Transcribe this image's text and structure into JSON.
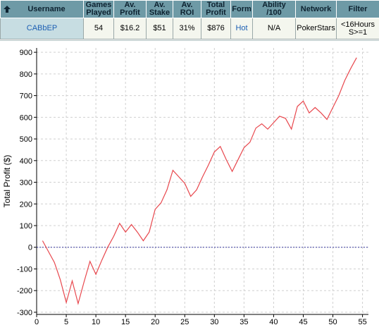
{
  "table": {
    "headers": {
      "username": "Username",
      "games_played": [
        "Games",
        "Played"
      ],
      "av_profit": [
        "Av.",
        "Profit"
      ],
      "av_stake": [
        "Av.",
        "Stake"
      ],
      "av_roi": "Av. ROI",
      "total_profit": [
        "Total",
        "Profit"
      ],
      "form": "Form",
      "ability": "Ability /100",
      "network": "Network",
      "filter": "Filter"
    },
    "row": {
      "username": "CABbEP",
      "games_played": "54",
      "av_profit": "$16.2",
      "av_stake": "$51",
      "av_roi": "31%",
      "total_profit": "$876",
      "form": "Hot",
      "ability": "N/A",
      "network": "PokerStars",
      "filter_line1": "<16Hours",
      "filter_line2": "S>=1"
    },
    "sort_icon": "arrow-up-icon"
  },
  "chart_data": {
    "type": "line",
    "ylabel": "Total Profit ($)",
    "xlabel": "",
    "xlim": [
      0,
      56
    ],
    "ylim": [
      -310,
      920
    ],
    "xticks": [
      0,
      5,
      10,
      15,
      20,
      25,
      30,
      35,
      40,
      45,
      50,
      55
    ],
    "yticks": [
      -300,
      -200,
      -100,
      0,
      100,
      200,
      300,
      400,
      500,
      600,
      700,
      800,
      900
    ],
    "grid": true,
    "zero_line": true,
    "colors": {
      "series": "#e8474d",
      "zero_line": "#3a3aa0",
      "grid": "#d0d0d0"
    },
    "series": [
      {
        "x": [
          1,
          2,
          3,
          4,
          5,
          6,
          7,
          8,
          9,
          10,
          11,
          12,
          13,
          14,
          15,
          16,
          17,
          18,
          19,
          20,
          21,
          22,
          23,
          24,
          25,
          26,
          27,
          28,
          29,
          30,
          31,
          32,
          33,
          34,
          35,
          36,
          37,
          38,
          39,
          40,
          41,
          42,
          43,
          44,
          45,
          46,
          47,
          48,
          49,
          50,
          51,
          52,
          53,
          54
        ],
        "values": [
          30,
          -20,
          -70,
          -150,
          -255,
          -155,
          -260,
          -160,
          -65,
          -125,
          -60,
          0,
          50,
          110,
          70,
          105,
          70,
          30,
          70,
          175,
          205,
          265,
          355,
          325,
          295,
          235,
          265,
          325,
          380,
          440,
          465,
          405,
          350,
          405,
          460,
          485,
          550,
          570,
          545,
          575,
          605,
          595,
          545,
          650,
          675,
          620,
          645,
          620,
          590,
          645,
          700,
          770,
          825,
          875
        ]
      }
    ]
  }
}
